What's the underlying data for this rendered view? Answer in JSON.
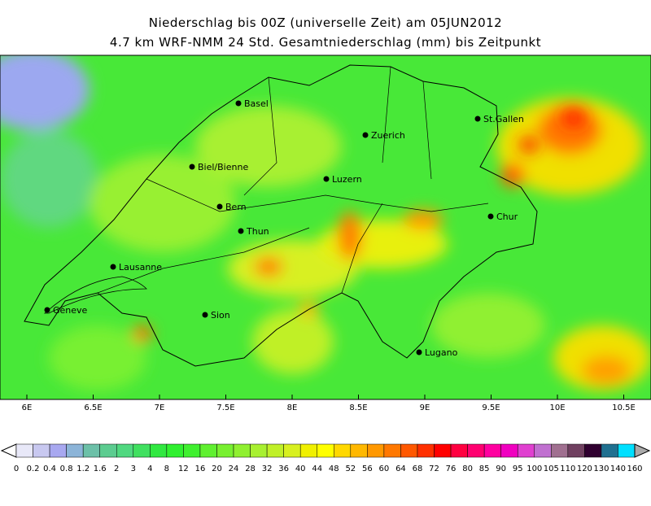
{
  "header": {
    "title": "Niederschlag bis 00Z (universelle Zeit) am 05JUN2012",
    "subtitle": "4.7 km WRF-NMM 24 Std. Gesamtniederschlag (mm) bis Zeitpunkt"
  },
  "map": {
    "cities": [
      "Basel",
      "Zuerich",
      "St.Gallen",
      "Biel/Bienne",
      "Luzern",
      "Bern",
      "Chur",
      "Thun",
      "Lausanne",
      "Geneve",
      "Sion",
      "Lugano"
    ],
    "lon_labels": [
      "6E",
      "6.5E",
      "7E",
      "7.5E",
      "8E",
      "8.5E",
      "9E",
      "9.5E",
      "10E",
      "10.5E"
    ]
  },
  "colorbar": {
    "labels": [
      "0",
      "0.2",
      "0.4",
      "0.8",
      "1.2",
      "1.6",
      "2",
      "3",
      "4",
      "8",
      "12",
      "16",
      "20",
      "24",
      "28",
      "32",
      "36",
      "40",
      "44",
      "48",
      "52",
      "56",
      "60",
      "64",
      "68",
      "72",
      "76",
      "80",
      "85",
      "90",
      "95",
      "100",
      "105",
      "110",
      "120",
      "130",
      "140",
      "160"
    ],
    "colors": [
      "#e8e8f8",
      "#c8c8f0",
      "#a8a8f0",
      "#8cb4d8",
      "#6cc0a8",
      "#5ccc90",
      "#50d880",
      "#40e060",
      "#30e840",
      "#30f030",
      "#40f030",
      "#60f030",
      "#78f030",
      "#90f030",
      "#a8f030",
      "#c0f028",
      "#d8f020",
      "#f0f000",
      "#ffff00",
      "#ffd800",
      "#ffb800",
      "#ff9800",
      "#ff7800",
      "#ff5800",
      "#ff3000",
      "#ff0000",
      "#ff0040",
      "#ff0070",
      "#ff00a0",
      "#f000c0",
      "#e040d0",
      "#c070d0",
      "#a07090",
      "#704060",
      "#300030",
      "#207090",
      "#00e0ff"
    ]
  }
}
